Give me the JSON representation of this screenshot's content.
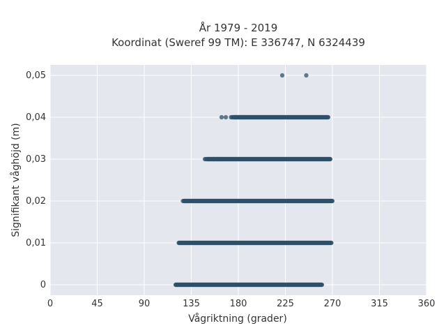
{
  "chart_data": {
    "type": "scatter",
    "title": "År 1979 - 2019",
    "subtitle": "Koordinat (Sweref 99 TM): E 336747, N 6324439",
    "xlabel": "Vågriktning (grader)",
    "ylabel": "Signifikant våghöjd (m)",
    "xlim": [
      0,
      360
    ],
    "ylim": [
      -0.0025,
      0.0525
    ],
    "x_ticks": [
      0,
      45,
      90,
      135,
      180,
      225,
      270,
      315,
      360
    ],
    "x_tick_labels": [
      "0",
      "45",
      "90",
      "135",
      "180",
      "225",
      "270",
      "315",
      "360"
    ],
    "y_ticks": [
      0,
      0.01,
      0.02,
      0.03,
      0.04,
      0.05
    ],
    "y_tick_labels": [
      "0",
      "0,01",
      "0,02",
      "0,03",
      "0,04",
      "0,05"
    ],
    "grid": true,
    "background": "#e5e7ef",
    "point_color": "#2e5068",
    "bands": [
      {
        "y": 0,
        "x_min": 120,
        "x_max": 260,
        "sparse_x": []
      },
      {
        "y": 0.01,
        "x_min": 123,
        "x_max": 269,
        "sparse_x": []
      },
      {
        "y": 0.02,
        "x_min": 128,
        "x_max": 270,
        "sparse_x": [
          127
        ]
      },
      {
        "y": 0.03,
        "x_min": 150,
        "x_max": 268,
        "sparse_x": [
          148,
          149,
          156,
          160,
          162,
          164
        ]
      },
      {
        "y": 0.04,
        "x_min": 175,
        "x_max": 266,
        "sparse_x": [
          164,
          168,
          173,
          174,
          178,
          183,
          186,
          190,
          195,
          220
        ]
      },
      {
        "y": 0.05,
        "x_min": null,
        "x_max": null,
        "sparse_x": [
          222,
          245
        ]
      }
    ]
  }
}
